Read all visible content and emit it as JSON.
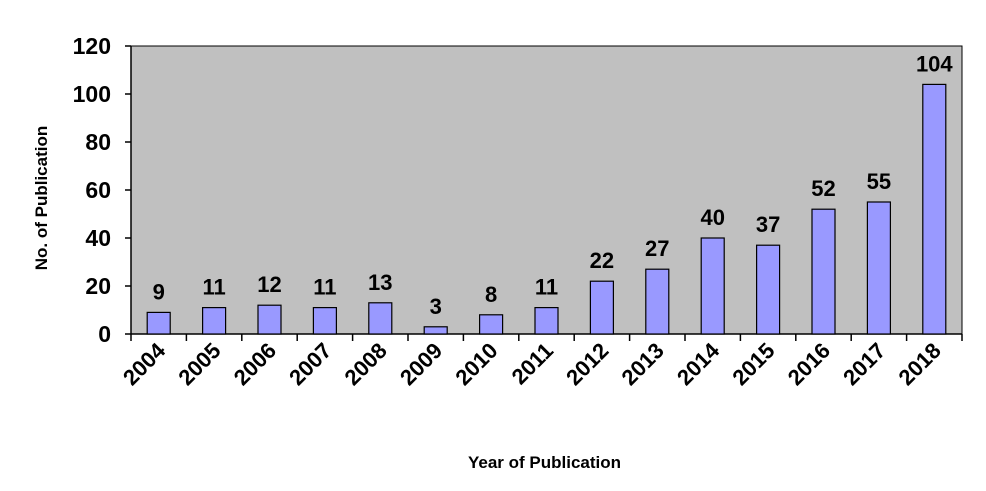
{
  "chart_data": {
    "type": "bar",
    "title": "",
    "xlabel": "Year of Publication",
    "ylabel": "No. of Publication",
    "categories": [
      "2004",
      "2005",
      "2006",
      "2007",
      "2008",
      "2009",
      "2010",
      "2011",
      "2012",
      "2013",
      "2014",
      "2015",
      "2016",
      "2017",
      "2018"
    ],
    "values": [
      9,
      11,
      12,
      11,
      13,
      3,
      8,
      11,
      22,
      27,
      40,
      37,
      52,
      55,
      104
    ],
    "data_labels": [
      "9",
      "11",
      "12",
      "11",
      "13",
      "3",
      "8",
      "11",
      "22",
      "27",
      "40",
      "37",
      "52",
      "55",
      "104"
    ],
    "ylim": [
      0,
      120
    ],
    "yticks": [
      0,
      20,
      40,
      60,
      80,
      100,
      120
    ],
    "grid": false,
    "legend": "none",
    "colors": {
      "plot_background": "#c0c0c0",
      "bar_fill": "#9999ff",
      "bar_stroke": "#000000",
      "text": "#000000"
    }
  }
}
